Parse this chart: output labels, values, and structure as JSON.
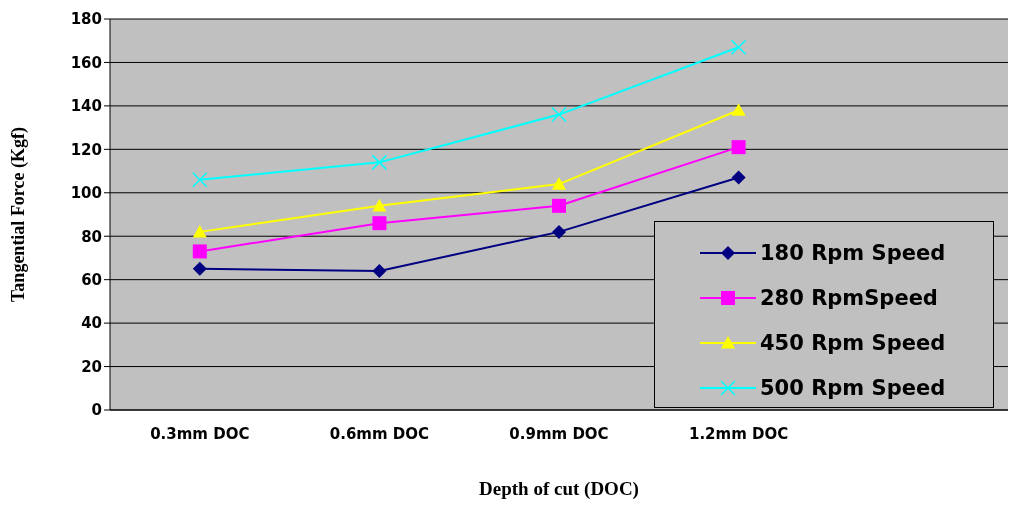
{
  "chart_data": {
    "type": "line",
    "xlabel": "Depth of cut (DOC)",
    "ylabel": "Tangential Force (Kgf)",
    "categories": [
      "0.3mm DOC",
      "0.6mm DOC",
      "0.9mm DOC",
      "1.2mm DOC",
      null
    ],
    "series": [
      {
        "name": "180 Rpm Speed",
        "color": "#000080",
        "marker": "diamond",
        "values": [
          65,
          64,
          82,
          107,
          null
        ]
      },
      {
        "name": "280 RpmSpeed",
        "color": "#ff00ff",
        "marker": "square",
        "values": [
          73,
          86,
          94,
          121,
          null
        ]
      },
      {
        "name": "450 Rpm Speed",
        "color": "#ffff00",
        "marker": "triangle",
        "values": [
          82,
          94,
          104,
          138,
          null
        ]
      },
      {
        "name": "500 Rpm Speed",
        "color": "#00ffff",
        "marker": "cross",
        "values": [
          106,
          114,
          136,
          167,
          null
        ]
      }
    ],
    "ylim": [
      0,
      180
    ],
    "yticks": [
      0,
      20,
      40,
      60,
      80,
      100,
      120,
      140,
      160,
      180
    ],
    "grid": "y",
    "legend": "bottom right"
  }
}
